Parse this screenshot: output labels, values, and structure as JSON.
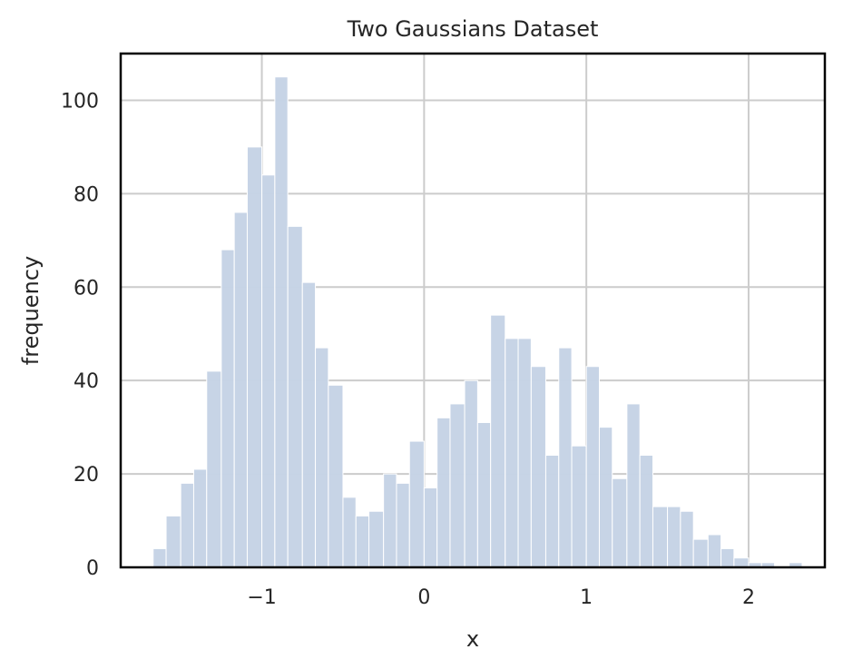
{
  "chart_data": {
    "type": "bar",
    "title": "Two Gaussians Dataset",
    "xlabel": "x",
    "ylabel": "frequency",
    "xlim": [
      -1.87,
      2.47
    ],
    "ylim": [
      0,
      110
    ],
    "x_ticks": [
      -1,
      0,
      1,
      2
    ],
    "x_tick_labels": [
      "−1",
      "0",
      "1",
      "2"
    ],
    "y_ticks": [
      0,
      20,
      40,
      60,
      80,
      100
    ],
    "y_tick_labels": [
      "0",
      "20",
      "40",
      "60",
      "80",
      "100"
    ],
    "grid": true,
    "bin_edges": [
      -1.67,
      -1.59,
      -1.5,
      -1.42,
      -1.34,
      -1.25,
      -1.17,
      -1.09,
      -1.0,
      -0.92,
      -0.84,
      -0.75,
      -0.67,
      -0.59,
      -0.5,
      -0.42,
      -0.34,
      -0.25,
      -0.17,
      -0.09,
      0.0,
      0.08,
      0.16,
      0.25,
      0.33,
      0.41,
      0.5,
      0.58,
      0.66,
      0.75,
      0.83,
      0.91,
      1.0,
      1.08,
      1.16,
      1.25,
      1.33,
      1.41,
      1.5,
      1.58,
      1.66,
      1.75,
      1.83,
      1.91,
      2.0,
      2.08,
      2.16,
      2.25,
      2.33
    ],
    "values": [
      4,
      11,
      18,
      21,
      42,
      68,
      76,
      90,
      84,
      105,
      73,
      61,
      47,
      39,
      15,
      11,
      12,
      20,
      18,
      27,
      17,
      32,
      35,
      40,
      31,
      54,
      49,
      49,
      43,
      24,
      47,
      26,
      43,
      30,
      19,
      35,
      24,
      13,
      13,
      12,
      6,
      7,
      4,
      2,
      1,
      1,
      0,
      1
    ],
    "bar_color": "#c6d3e5",
    "grid_color": "#cccccc"
  }
}
